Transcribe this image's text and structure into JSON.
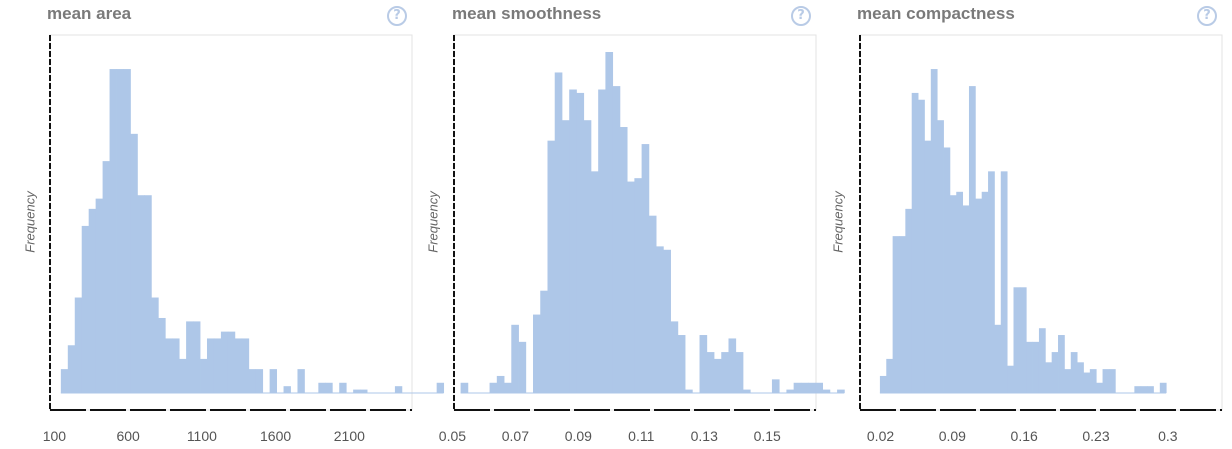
{
  "chart_data": [
    {
      "type": "bar",
      "title": "mean area",
      "ylabel": "Frequency",
      "xlim": [
        70,
        2525
      ],
      "ylim": [
        0,
        100
      ],
      "xticks": [
        100,
        600,
        1100,
        1600,
        2100
      ],
      "xtick_labels": [
        "100",
        "600",
        "1100",
        "1600",
        "2100"
      ],
      "bin_start": 143.5,
      "bin_width": 47.2,
      "values": [
        7,
        14,
        28,
        49,
        54,
        57,
        68,
        95,
        95,
        95,
        76,
        58,
        58,
        28,
        22,
        16,
        16,
        10,
        21,
        21,
        10,
        16,
        16,
        18,
        18,
        16,
        16,
        7,
        7,
        0,
        7,
        0,
        2,
        0,
        7,
        0,
        0,
        3,
        3,
        0,
        3,
        0,
        1,
        1,
        0,
        0,
        0,
        0,
        2,
        0,
        0,
        0,
        0,
        0,
        3
      ]
    },
    {
      "type": "bar",
      "title": "mean smoothness",
      "ylabel": "Frequency",
      "xlim": [
        0.0505,
        0.1655
      ],
      "ylim": [
        0,
        100
      ],
      "xticks": [
        0.05,
        0.07,
        0.09,
        0.11,
        0.13,
        0.15
      ],
      "xtick_labels": [
        "0.05",
        "0.07",
        "0.09",
        "0.11",
        "0.13",
        "0.15"
      ],
      "bin_start": 0.0526,
      "bin_width": 0.0023,
      "values": [
        3,
        0,
        0,
        0,
        3,
        5,
        3,
        20,
        15,
        0,
        23,
        30,
        74,
        94,
        80,
        89,
        88,
        80,
        65,
        89,
        100,
        90,
        78,
        62,
        63,
        73,
        52,
        43,
        42,
        21,
        17,
        1,
        0,
        17,
        12,
        10,
        12,
        16,
        12,
        1,
        0,
        0,
        0,
        4,
        0,
        1,
        3,
        3,
        3,
        3,
        1,
        0,
        1
      ]
    },
    {
      "type": "bar",
      "title": "mean compactness",
      "ylabel": "Frequency",
      "xlim": [
        0.0,
        0.3528
      ],
      "ylim": [
        0,
        100
      ],
      "xticks": [
        0.02,
        0.09,
        0.16,
        0.23,
        0.3
      ],
      "xtick_labels": [
        "0.02",
        "0.09",
        "0.16",
        "0.23",
        "0.3"
      ],
      "bin_start": 0.0194,
      "bin_width": 0.0062,
      "values": [
        5,
        10,
        46,
        46,
        54,
        88,
        86,
        74,
        95,
        80,
        72,
        58,
        59,
        55,
        90,
        57,
        59,
        65,
        20,
        65,
        8,
        31,
        31,
        15,
        15,
        19,
        9,
        12,
        17,
        7,
        12,
        9,
        6,
        7,
        3,
        7,
        7,
        0,
        0,
        0,
        2,
        2,
        2,
        0,
        3
      ]
    }
  ]
}
